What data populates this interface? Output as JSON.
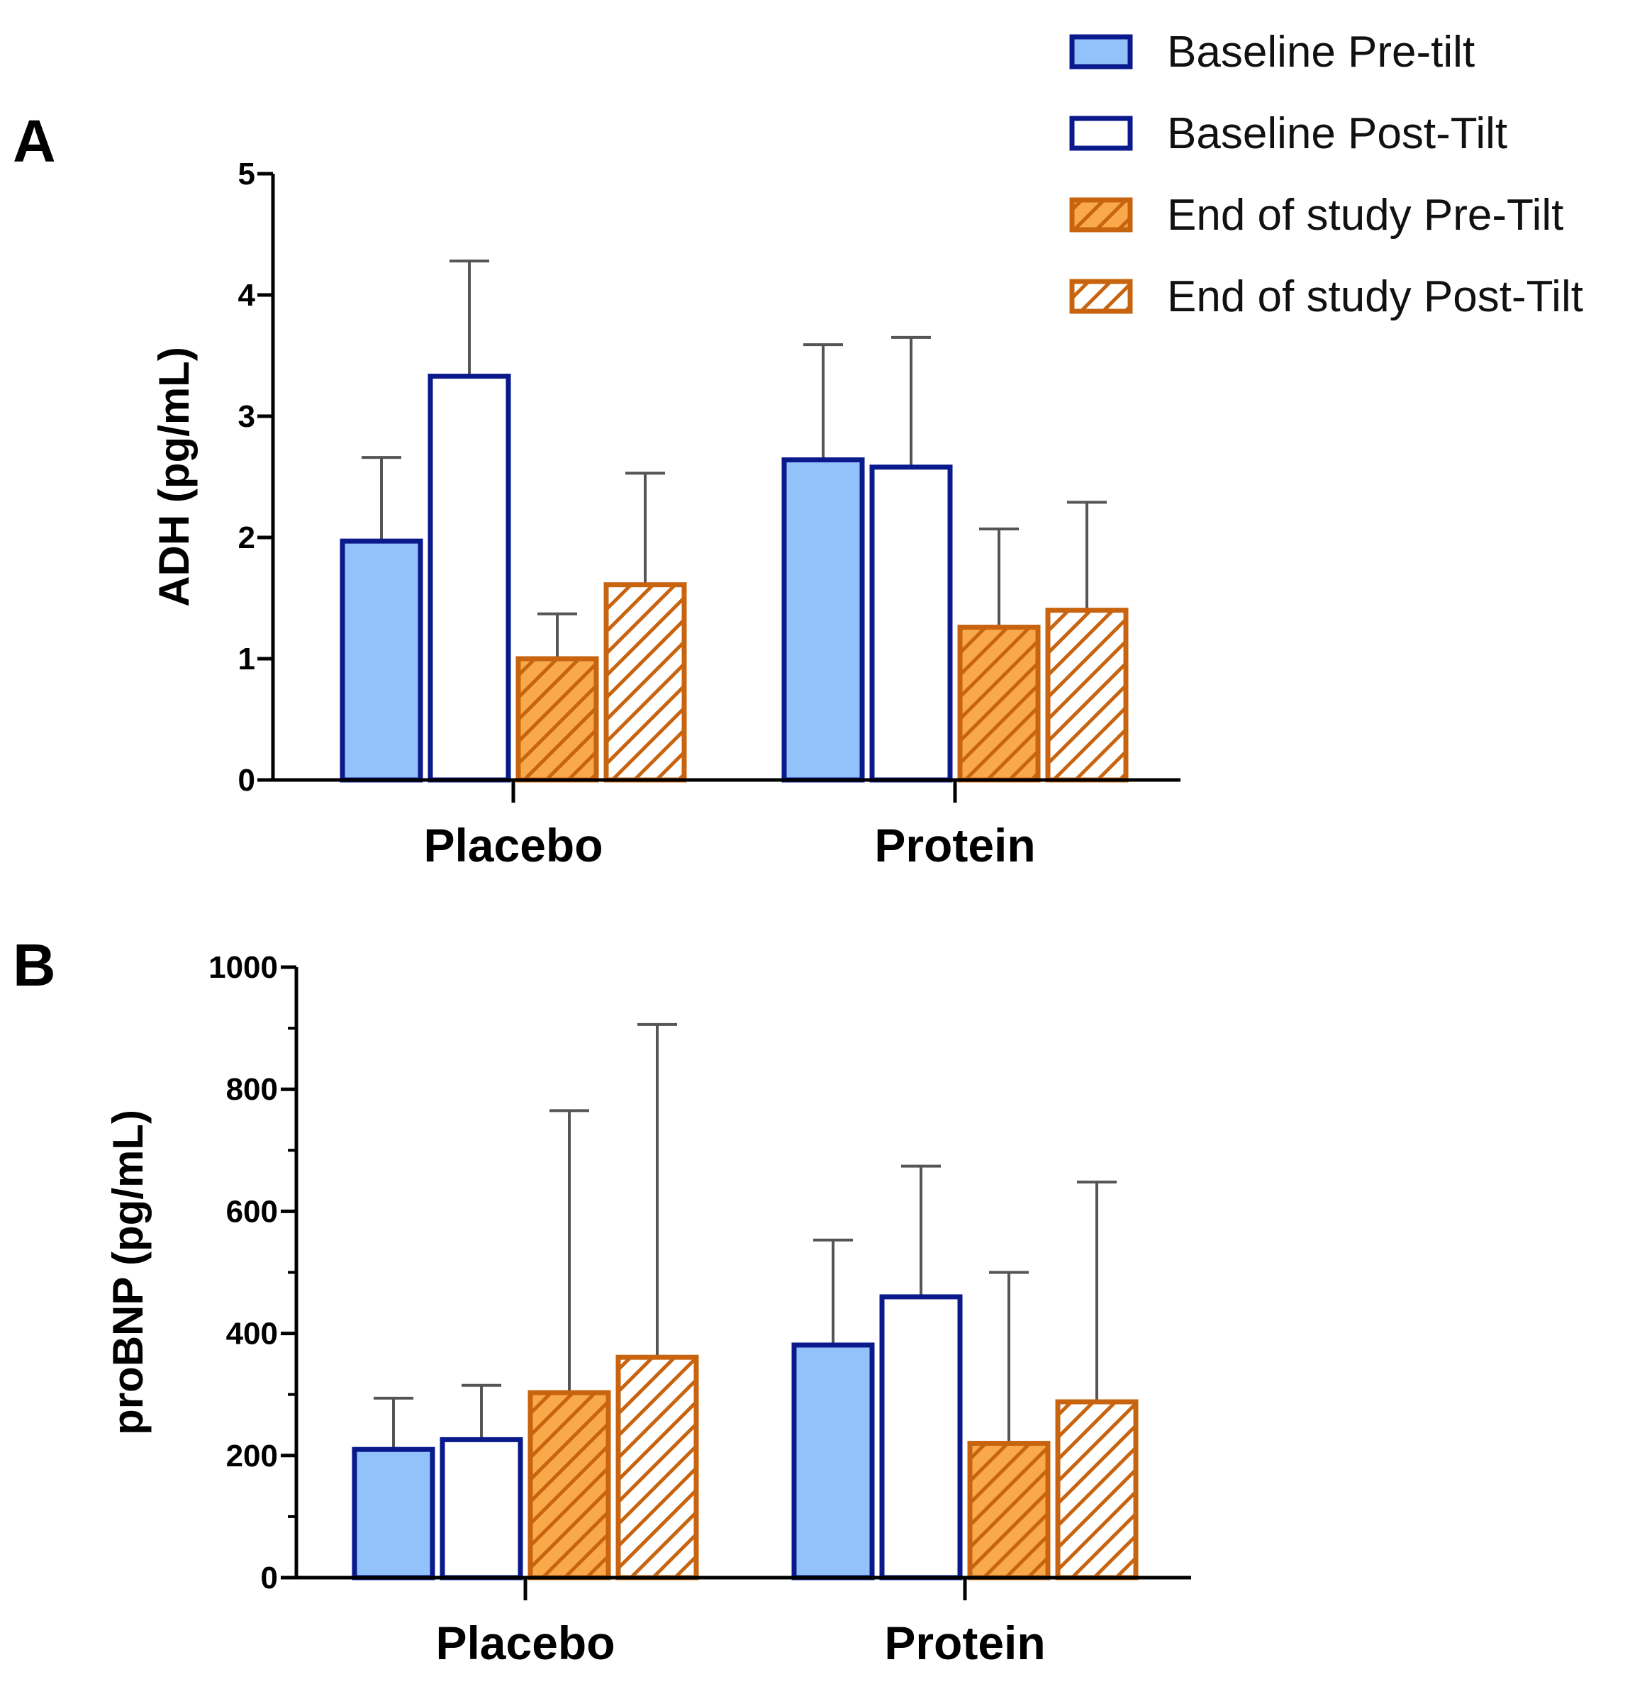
{
  "colors": {
    "navy": "#0a1a8c",
    "light_blue": "#93c2fa",
    "orange_fill": "#f9a94a",
    "orange_stroke": "#c8640f",
    "white": "#ffffff",
    "error_bar": "#555555",
    "axis": "#000000"
  },
  "legend": {
    "items": [
      {
        "label": "Baseline Pre-tilt",
        "style": "solid-blue"
      },
      {
        "label": "Baseline Post-Tilt",
        "style": "open-blue"
      },
      {
        "label": "End of study Pre-Tilt",
        "style": "hatch-orange"
      },
      {
        "label": "End of study Post-Tilt",
        "style": "hatch-white"
      }
    ]
  },
  "chart_data": [
    {
      "panel": "A",
      "type": "bar",
      "ylabel": "ADH (pg/mL)",
      "ylim": [
        0,
        5
      ],
      "yticks": [
        "0",
        "1",
        "2",
        "3",
        "4",
        "5"
      ],
      "categories": [
        "Placebo",
        "Protein"
      ],
      "series": [
        {
          "name": "Baseline Pre-tilt",
          "values": [
            1.97,
            2.64
          ],
          "error_upper": [
            2.66,
            3.59
          ]
        },
        {
          "name": "Baseline Post-Tilt",
          "values": [
            3.33,
            2.58
          ],
          "error_upper": [
            4.28,
            3.65
          ]
        },
        {
          "name": "End of study Pre-Tilt",
          "values": [
            1.0,
            1.26
          ],
          "error_upper": [
            1.37,
            2.07
          ]
        },
        {
          "name": "End of study Post-Tilt",
          "values": [
            1.61,
            1.4
          ],
          "error_upper": [
            2.53,
            2.29
          ]
        }
      ]
    },
    {
      "panel": "B",
      "type": "bar",
      "ylabel": "proBNP (pg/mL)",
      "ylim": [
        0,
        1000
      ],
      "yticks": [
        "0",
        "200",
        "400",
        "600",
        "800",
        "1000"
      ],
      "categories": [
        "Placebo",
        "Protein"
      ],
      "series": [
        {
          "name": "Baseline Pre-tilt",
          "values": [
            210,
            381
          ],
          "error_upper": [
            294,
            553
          ]
        },
        {
          "name": "Baseline Post-Tilt",
          "values": [
            226,
            460
          ],
          "error_upper": [
            315,
            674
          ]
        },
        {
          "name": "End of study Pre-Tilt",
          "values": [
            303,
            220
          ],
          "error_upper": [
            765,
            500
          ]
        },
        {
          "name": "End of study Post-Tilt",
          "values": [
            361,
            288
          ],
          "error_upper": [
            906,
            648
          ]
        }
      ]
    }
  ]
}
